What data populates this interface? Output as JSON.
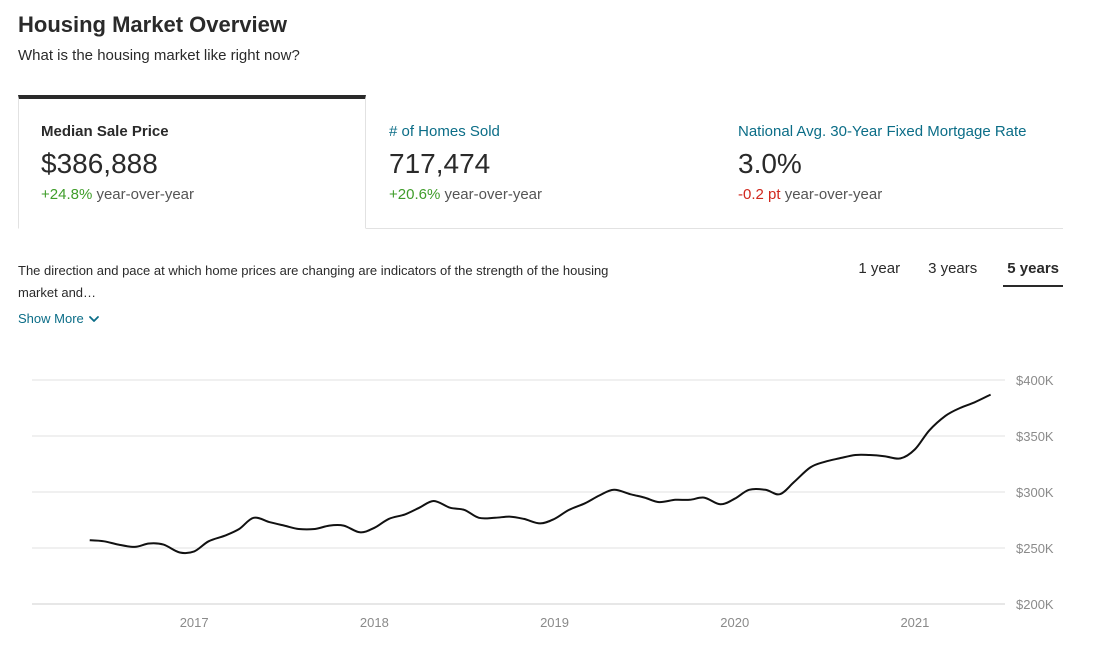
{
  "page": {
    "title": "Housing Market Overview",
    "subtitle": "What is the housing market like right now?"
  },
  "stats": [
    {
      "label": "Median Sale Price",
      "value": "$386,888",
      "change": "+24.8%",
      "change_suffix": " year-over-year",
      "trend": "positive",
      "active": true
    },
    {
      "label": "# of Homes Sold",
      "value": "717,474",
      "change": "+20.6%",
      "change_suffix": " year-over-year",
      "trend": "positive",
      "active": false
    },
    {
      "label": "National Avg. 30-Year Fixed Mortgage Rate",
      "value": "3.0%",
      "change": "-0.2 pt",
      "change_suffix": " year-over-year",
      "trend": "negative",
      "active": false
    }
  ],
  "description": {
    "text": "The direction and pace at which home prices are changing are indicators of the strength of the housing market and…",
    "show_more": "Show More"
  },
  "range_tabs": [
    {
      "label": "1 year",
      "active": false
    },
    {
      "label": "3 years",
      "active": false
    },
    {
      "label": "5 years",
      "active": true
    }
  ],
  "colors": {
    "link": "#0b6d87",
    "positive": "#3f9d2a",
    "negative": "#d0271d",
    "line": "#111111",
    "grid": "#e0e0e0"
  },
  "chart_data": {
    "type": "line",
    "x_tick_labels": [
      "2017",
      "2018",
      "2019",
      "2020",
      "2021"
    ],
    "x_ticks": [
      2017.0,
      2018.0,
      2019.0,
      2020.0,
      2021.0
    ],
    "y_tick_labels": [
      "$200K",
      "$250K",
      "$300K",
      "$350K",
      "$400K"
    ],
    "y_ticks": [
      200000,
      250000,
      300000,
      350000,
      400000
    ],
    "xlim": [
      2016.1,
      2021.5
    ],
    "ylim": [
      200000,
      400000
    ],
    "grid": true,
    "series": [
      {
        "x": [
          2016.42,
          2016.5,
          2016.58,
          2016.67,
          2016.75,
          2016.83,
          2016.92,
          2017.0,
          2017.08,
          2017.17,
          2017.25,
          2017.33,
          2017.42,
          2017.5,
          2017.58,
          2017.67,
          2017.75,
          2017.83,
          2017.92,
          2018.0,
          2018.08,
          2018.17,
          2018.25,
          2018.33,
          2018.42,
          2018.5,
          2018.58,
          2018.67,
          2018.75,
          2018.83,
          2018.92,
          2019.0,
          2019.08,
          2019.17,
          2019.25,
          2019.33,
          2019.42,
          2019.5,
          2019.58,
          2019.67,
          2019.75,
          2019.83,
          2019.92,
          2020.0,
          2020.08,
          2020.17,
          2020.25,
          2020.33,
          2020.42,
          2020.5,
          2020.58,
          2020.67,
          2020.75,
          2020.83,
          2020.92,
          2021.0,
          2021.08,
          2021.17,
          2021.25,
          2021.33,
          2021.42
        ],
        "y": [
          257000,
          256000,
          253000,
          251000,
          254000,
          253000,
          246000,
          247000,
          256000,
          261000,
          267000,
          277000,
          273000,
          270000,
          267000,
          267000,
          270000,
          270000,
          264000,
          268000,
          276000,
          280000,
          286000,
          292000,
          286000,
          284000,
          277000,
          277000,
          278000,
          276000,
          272000,
          276000,
          284000,
          290000,
          297000,
          302000,
          298000,
          295000,
          291000,
          293000,
          293000,
          295000,
          289000,
          294000,
          302000,
          302000,
          298000,
          309000,
          322000,
          327000,
          330000,
          333000,
          333000,
          332000,
          330000,
          338000,
          355000,
          368000,
          375000,
          380000,
          387000
        ]
      }
    ]
  }
}
